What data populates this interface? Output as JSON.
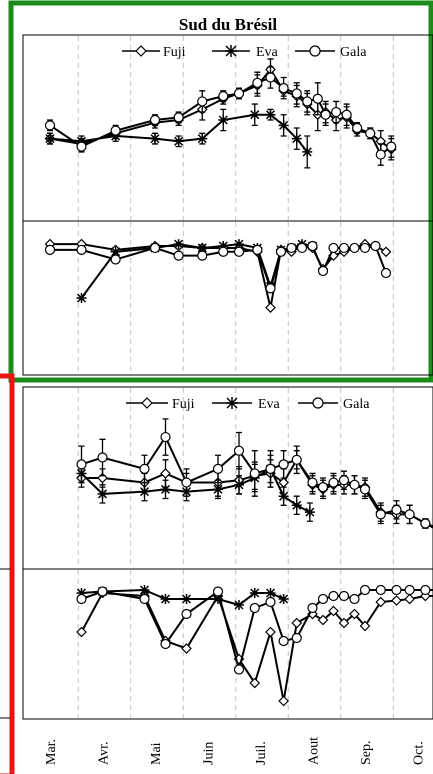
{
  "chart_data": [
    {
      "panel": "top",
      "type": "line",
      "title": "Sud du Brésil",
      "xlabel": "",
      "ylabel": "",
      "ylim": [
        0,
        100
      ],
      "grid": true,
      "legend_position": "top",
      "series": [
        {
          "name": "Fuji",
          "marker": "diamond",
          "x": [
            0.0,
            0.6,
            1.25,
            2.0,
            2.45,
            2.9,
            3.3,
            3.6,
            3.95,
            4.2,
            4.45,
            4.7,
            4.9,
            5.1,
            5.25,
            5.45,
            5.65,
            5.85,
            6.1,
            6.3,
            6.5
          ],
          "y": [
            71,
            69,
            73,
            77,
            78,
            82,
            86,
            88,
            91,
            97,
            89,
            87,
            84,
            80,
            81,
            78,
            79,
            74,
            73,
            70,
            67
          ],
          "yerr": [
            1,
            1,
            1,
            1,
            1,
            2,
            1,
            1,
            2,
            2,
            1,
            2,
            2,
            3,
            2,
            2,
            2,
            1,
            1,
            2,
            2
          ]
        },
        {
          "name": "Eva",
          "marker": "star",
          "x": [
            0.0,
            0.6,
            1.25,
            2.0,
            2.45,
            2.9,
            3.3,
            3.9,
            4.2,
            4.45,
            4.7,
            4.9
          ],
          "y": [
            71,
            70,
            72,
            71,
            70,
            71,
            78,
            80,
            80,
            76,
            71,
            66
          ],
          "yerr": [
            1,
            1,
            1,
            1,
            1,
            1,
            2,
            2,
            1,
            2,
            2,
            3
          ]
        },
        {
          "name": "Gala",
          "marker": "circle",
          "x": [
            0.0,
            0.6,
            1.25,
            2.0,
            2.45,
            2.9,
            3.3,
            3.6,
            3.95,
            4.2,
            4.45,
            4.7,
            4.9,
            5.1,
            5.25,
            5.45,
            5.65,
            5.85,
            6.1,
            6.3,
            6.5
          ],
          "y": [
            76,
            68,
            74,
            78,
            79,
            85,
            87,
            88,
            92,
            94,
            90,
            88,
            85,
            86,
            80,
            81,
            80,
            75,
            73,
            65,
            68
          ],
          "yerr": [
            1,
            1,
            1,
            1,
            1,
            2,
            1,
            1,
            2,
            2,
            2,
            2,
            2,
            3,
            2,
            2,
            2,
            1,
            1,
            2,
            2
          ]
        }
      ]
    },
    {
      "panel": "upper-lower",
      "type": "line",
      "ylim": [
        0,
        100
      ],
      "grid": true,
      "series": [
        {
          "name": "Fuji",
          "marker": "diamond",
          "x": [
            0.0,
            0.6,
            1.25,
            2.0,
            2.45,
            2.9,
            3.3,
            3.6,
            3.95,
            4.2,
            4.4,
            4.6,
            4.8,
            5.0,
            5.2,
            5.4,
            5.6,
            5.8,
            6.0,
            6.2,
            6.4
          ],
          "y": [
            88,
            88,
            85,
            87,
            87,
            86,
            86,
            86,
            84,
            55,
            85,
            84,
            87,
            86,
            75,
            82,
            84,
            86,
            88,
            87,
            84
          ]
        },
        {
          "name": "Eva",
          "marker": "star",
          "x": [
            0.6,
            1.25,
            2.0,
            2.45,
            2.9,
            3.3,
            3.6,
            3.95,
            4.2,
            4.4,
            4.6,
            4.8,
            5.0
          ],
          "y": [
            60,
            84,
            86,
            88,
            86,
            87,
            88,
            86,
            66,
            85,
            86,
            88,
            87
          ]
        },
        {
          "name": "Gala",
          "marker": "circle",
          "x": [
            0.0,
            0.6,
            1.25,
            2.0,
            2.45,
            2.9,
            3.3,
            3.6,
            3.95,
            4.2,
            4.4,
            4.6,
            4.8,
            5.0,
            5.2,
            5.4,
            5.6,
            5.8,
            6.0,
            6.2,
            6.4
          ],
          "y": [
            85,
            85,
            80,
            86,
            82,
            82,
            84,
            84,
            85,
            65,
            84,
            86,
            86,
            87,
            74,
            86,
            86,
            86,
            86,
            87,
            73
          ]
        }
      ]
    },
    {
      "panel": "bottom",
      "type": "line",
      "xlabel": "",
      "ylabel": "",
      "ylim": [
        0,
        100
      ],
      "grid": true,
      "legend_position": "top",
      "categories": [
        "Mar.",
        "Avr.",
        "Mai",
        "Juin",
        "Juil.",
        "Aout",
        "Sep.",
        "Oct."
      ],
      "series": [
        {
          "name": "Fuji",
          "marker": "diamond",
          "x": [
            0.6,
            1.0,
            1.8,
            2.2,
            2.6,
            3.2,
            3.6,
            3.9,
            4.2,
            4.45,
            4.7,
            5.0,
            5.2,
            5.4,
            5.6,
            5.8,
            6.0,
            6.3,
            6.6,
            6.85,
            7.15,
            7.4,
            7.7,
            8.0
          ],
          "y": [
            60,
            60,
            58,
            62,
            58,
            58,
            59,
            61,
            62,
            58,
            68,
            57,
            55,
            57,
            57,
            57,
            56,
            45,
            44,
            44,
            40,
            37,
            35,
            36
          ],
          "yerr": [
            2,
            2,
            2,
            3,
            2,
            3,
            3,
            3,
            3,
            3,
            2,
            2,
            2,
            2,
            2,
            2,
            2,
            2,
            2,
            2,
            1,
            1,
            1,
            1
          ]
        },
        {
          "name": "Eva",
          "marker": "star",
          "x": [
            0.6,
            1.0,
            1.8,
            2.2,
            2.6,
            3.2,
            3.6,
            3.9,
            4.2,
            4.45,
            4.7,
            4.95
          ],
          "y": [
            62,
            53,
            54,
            55,
            54,
            55,
            57,
            60,
            64,
            52,
            48,
            45
          ],
          "yerr": [
            2,
            2,
            2,
            2,
            2,
            2,
            2,
            3,
            3,
            2,
            2,
            2
          ]
        },
        {
          "name": "Gala",
          "marker": "circle",
          "x": [
            0.6,
            1.0,
            1.8,
            2.2,
            2.6,
            3.2,
            3.6,
            3.9,
            4.2,
            4.45,
            4.7,
            5.0,
            5.2,
            5.4,
            5.6,
            5.8,
            6.0,
            6.3,
            6.6,
            6.85,
            7.15,
            7.4,
            7.7,
            8.0
          ],
          "y": [
            66,
            69,
            64,
            78,
            58,
            64,
            72,
            62,
            64,
            66,
            68,
            58,
            56,
            58,
            59,
            57,
            55,
            44,
            46,
            44,
            40,
            38,
            36,
            36
          ],
          "yerr": [
            4,
            4,
            3,
            4,
            3,
            3,
            4,
            5,
            4,
            3,
            3,
            2,
            2,
            2,
            2,
            2,
            2,
            2,
            2,
            2,
            1,
            1,
            1,
            1
          ]
        }
      ]
    },
    {
      "panel": "lower-lower",
      "type": "line",
      "ylim": [
        0,
        100
      ],
      "grid": true,
      "series": [
        {
          "name": "Fuji",
          "marker": "diamond",
          "x": [
            0.6,
            1.0,
            1.8,
            2.2,
            2.6,
            3.2,
            3.6,
            3.9,
            4.2,
            4.45,
            4.7,
            5.0,
            5.2,
            5.4,
            5.6,
            5.8,
            6.0,
            6.3,
            6.6,
            6.85,
            7.15,
            7.4
          ],
          "y": [
            58,
            84,
            82,
            52,
            47,
            82,
            40,
            24,
            58,
            12,
            64,
            70,
            66,
            72,
            64,
            70,
            62,
            78,
            79,
            80,
            82,
            82
          ]
        },
        {
          "name": "Eva",
          "marker": "star",
          "x": [
            0.6,
            1.0,
            1.8,
            2.2,
            2.6,
            3.2,
            3.6,
            3.9,
            4.2,
            4.45
          ],
          "y": [
            84,
            85,
            86,
            80,
            80,
            80,
            76,
            84,
            84,
            80
          ]
        },
        {
          "name": "Gala",
          "marker": "circle",
          "x": [
            0.6,
            1.0,
            1.8,
            2.2,
            2.6,
            3.2,
            3.6,
            3.9,
            4.2,
            4.45,
            4.7,
            5.0,
            5.2,
            5.4,
            5.6,
            5.8,
            6.0,
            6.3,
            6.6,
            6.85,
            7.15,
            7.4
          ],
          "y": [
            80,
            85,
            80,
            50,
            70,
            85,
            33,
            74,
            78,
            52,
            54,
            74,
            80,
            82,
            82,
            80,
            86,
            86,
            86,
            86,
            86,
            86
          ]
        }
      ]
    }
  ],
  "colors": {
    "frame_top": "#1a8c1a",
    "frame_bottom": "#ee1111",
    "line": "#000000",
    "grid": "#c0c0c0"
  }
}
